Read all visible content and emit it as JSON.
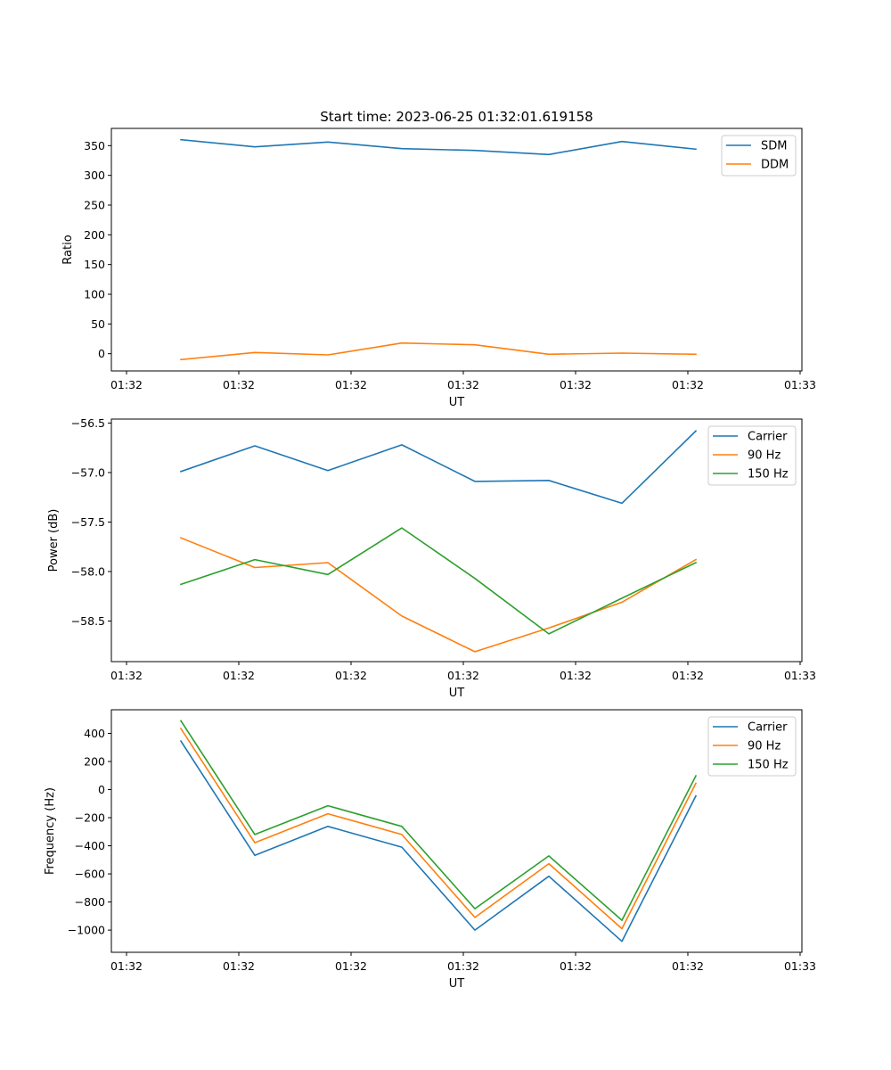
{
  "title": "Start time: 2023-06-25 01:32:01.619158",
  "colors": {
    "blue": "#1f77b4",
    "orange": "#ff7f0e",
    "green": "#2ca02c"
  },
  "chart_data": [
    {
      "type": "line",
      "xlabel": "UT",
      "ylabel": "Ratio",
      "xticks": [
        "01:32",
        "01:32",
        "01:32",
        "01:32",
        "01:32",
        "01:32",
        "01:32"
      ],
      "xticks_end": "01:33",
      "yticks": [
        0,
        50,
        100,
        150,
        200,
        250,
        300,
        350
      ],
      "ylim": [
        -29,
        379
      ],
      "legend_position": "top-right",
      "series": [
        {
          "name": "SDM",
          "color": "#1f77b4",
          "values": [
            360,
            348,
            356,
            345,
            342,
            335,
            357,
            344
          ]
        },
        {
          "name": "DDM",
          "color": "#ff7f0e",
          "values": [
            -10,
            2,
            -2,
            18,
            15,
            -1,
            1,
            -1
          ]
        }
      ]
    },
    {
      "type": "line",
      "xlabel": "UT",
      "ylabel": "Power (dB)",
      "xticks": [
        "01:32",
        "01:32",
        "01:32",
        "01:32",
        "01:32",
        "01:32",
        "01:32"
      ],
      "xticks_end": "01:33",
      "yticks": [
        -58.5,
        -58.0,
        -57.5,
        -57.0,
        -56.5
      ],
      "yticklabels": [
        "−58.5",
        "−58.0",
        "−57.5",
        "−57.0",
        "−56.5"
      ],
      "ylim": [
        -58.91,
        -56.46
      ],
      "legend_position": "top-right",
      "series": [
        {
          "name": "Carrier",
          "color": "#1f77b4",
          "values": [
            -56.99,
            -56.73,
            -56.98,
            -56.72,
            -57.09,
            -57.08,
            -57.31,
            -56.58
          ]
        },
        {
          "name": "90 Hz",
          "color": "#ff7f0e",
          "values": [
            -57.66,
            -57.96,
            -57.91,
            -58.45,
            -58.81,
            -58.57,
            -58.31,
            -57.88
          ]
        },
        {
          "name": "150 Hz",
          "color": "#2ca02c",
          "values": [
            -58.13,
            -57.88,
            -58.03,
            -57.56,
            -58.07,
            -58.63,
            -58.27,
            -57.91
          ]
        }
      ]
    },
    {
      "type": "line",
      "xlabel": "UT",
      "ylabel": "Frequency (Hz)",
      "xticks": [
        "01:32",
        "01:32",
        "01:32",
        "01:32",
        "01:32",
        "01:32",
        "01:32"
      ],
      "xticks_end": "01:33",
      "yticks": [
        -1000,
        -800,
        -600,
        -400,
        -200,
        0,
        200,
        400
      ],
      "yticklabels": [
        "−1000",
        "−800",
        "−600",
        "−400",
        "−200",
        "0",
        "200",
        "400"
      ],
      "ylim": [
        -1158,
        568
      ],
      "legend_position": "top-right",
      "series": [
        {
          "name": "Carrier",
          "color": "#1f77b4",
          "values": [
            345,
            -468,
            -262,
            -410,
            -1000,
            -617,
            -1080,
            -45
          ]
        },
        {
          "name": "90 Hz",
          "color": "#ff7f0e",
          "values": [
            435,
            -378,
            -172,
            -320,
            -910,
            -527,
            -990,
            45
          ]
        },
        {
          "name": "150 Hz",
          "color": "#2ca02c",
          "values": [
            490,
            -320,
            -115,
            -262,
            -848,
            -472,
            -930,
            98
          ]
        }
      ]
    }
  ]
}
